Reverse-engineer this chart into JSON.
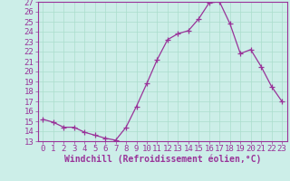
{
  "x": [
    0,
    1,
    2,
    3,
    4,
    5,
    6,
    7,
    8,
    9,
    10,
    11,
    12,
    13,
    14,
    15,
    16,
    17,
    18,
    19,
    20,
    21,
    22,
    23
  ],
  "y": [
    15.2,
    14.9,
    14.4,
    14.4,
    13.9,
    13.6,
    13.3,
    13.1,
    14.4,
    16.5,
    18.8,
    21.2,
    23.2,
    23.8,
    24.1,
    25.3,
    26.9,
    27.0,
    24.8,
    21.8,
    22.2,
    20.5,
    18.5,
    17.0
  ],
  "line_color": "#993399",
  "marker": "+",
  "marker_size": 4,
  "background_color": "#cceee8",
  "grid_color": "#aaddcc",
  "xlabel": "Windchill (Refroidissement éolien,°C)",
  "ylim": [
    13,
    27
  ],
  "xlim_min": -0.5,
  "xlim_max": 23.5,
  "yticks": [
    13,
    14,
    15,
    16,
    17,
    18,
    19,
    20,
    21,
    22,
    23,
    24,
    25,
    26,
    27
  ],
  "xticks": [
    0,
    1,
    2,
    3,
    4,
    5,
    6,
    7,
    8,
    9,
    10,
    11,
    12,
    13,
    14,
    15,
    16,
    17,
    18,
    19,
    20,
    21,
    22,
    23
  ],
  "tick_color": "#993399",
  "spine_color": "#993399",
  "xlabel_color": "#993399",
  "xlabel_fontsize": 7,
  "tick_fontsize": 6.5,
  "linewidth": 0.9,
  "markeredgewidth": 0.9
}
